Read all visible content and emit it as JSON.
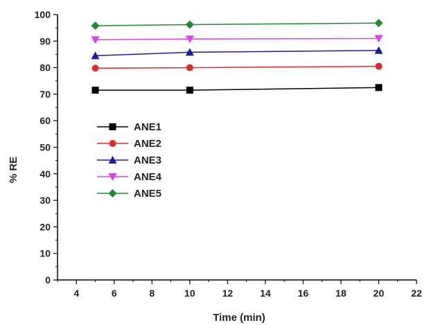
{
  "chart_data": {
    "type": "line",
    "xlabel": "Time (min)",
    "ylabel": "% RE",
    "xlim": [
      3,
      22
    ],
    "ylim": [
      0,
      100
    ],
    "xticks": [
      4,
      6,
      8,
      10,
      12,
      14,
      16,
      18,
      20,
      22
    ],
    "yticks": [
      0,
      10,
      20,
      30,
      40,
      50,
      60,
      70,
      80,
      90,
      100
    ],
    "grid": false,
    "legend_position": "center-left",
    "x": [
      5,
      10,
      20
    ],
    "series": [
      {
        "name": "ANE1",
        "values": [
          71.5,
          71.5,
          72.5
        ],
        "color": "#000000",
        "marker": "square"
      },
      {
        "name": "ANE2",
        "values": [
          79.8,
          80.0,
          80.5
        ],
        "color": "#e8272a",
        "marker": "circle"
      },
      {
        "name": "ANE3",
        "values": [
          84.5,
          85.8,
          86.5
        ],
        "color": "#1a1aa8",
        "marker": "triangle-up"
      },
      {
        "name": "ANE4",
        "values": [
          90.5,
          90.8,
          91.0
        ],
        "color": "#e040e8",
        "marker": "triangle-down"
      },
      {
        "name": "ANE5",
        "values": [
          95.8,
          96.2,
          96.8
        ],
        "color": "#1f8a2e",
        "marker": "diamond"
      }
    ]
  }
}
